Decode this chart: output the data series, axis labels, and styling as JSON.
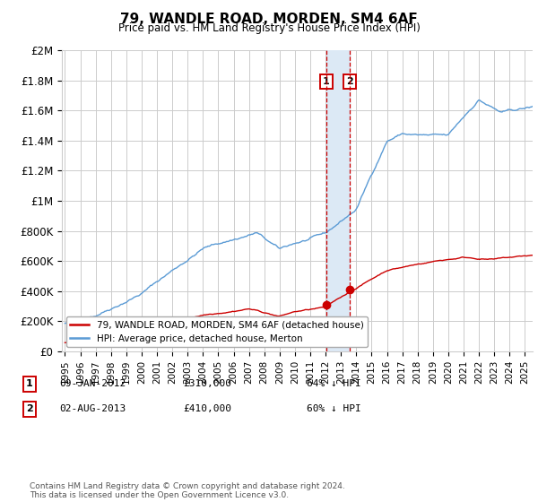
{
  "title": "79, WANDLE ROAD, MORDEN, SM4 6AF",
  "subtitle": "Price paid vs. HM Land Registry's House Price Index (HPI)",
  "ylim": [
    0,
    2000000
  ],
  "yticks": [
    0,
    200000,
    400000,
    600000,
    800000,
    1000000,
    1200000,
    1400000,
    1600000,
    1800000,
    2000000
  ],
  "ytick_labels": [
    "£0",
    "£200K",
    "£400K",
    "£600K",
    "£800K",
    "£1M",
    "£1.2M",
    "£1.4M",
    "£1.6M",
    "£1.8M",
    "£2M"
  ],
  "xlim_left": 1994.8,
  "xlim_right": 2025.5,
  "sale1_date_num": 2012.03,
  "sale1_price": 310000,
  "sale1_label": "09-JAN-2012",
  "sale2_date_num": 2013.58,
  "sale2_price": 410000,
  "sale2_label": "02-AUG-2013",
  "legend_red_label": "79, WANDLE ROAD, MORDEN, SM4 6AF (detached house)",
  "legend_blue_label": "HPI: Average price, detached house, Merton",
  "footnote": "Contains HM Land Registry data © Crown copyright and database right 2024.\nThis data is licensed under the Open Government Licence v3.0.",
  "red_color": "#cc0000",
  "blue_color": "#5b9bd5",
  "shade_color": "#dce9f5",
  "grid_color": "#cccccc",
  "background_color": "#ffffff",
  "info_rows": [
    [
      "1",
      "09-JAN-2012",
      "£310,000",
      "64% ↓ HPI"
    ],
    [
      "2",
      "02-AUG-2013",
      "£410,000",
      "60% ↓ HPI"
    ]
  ]
}
